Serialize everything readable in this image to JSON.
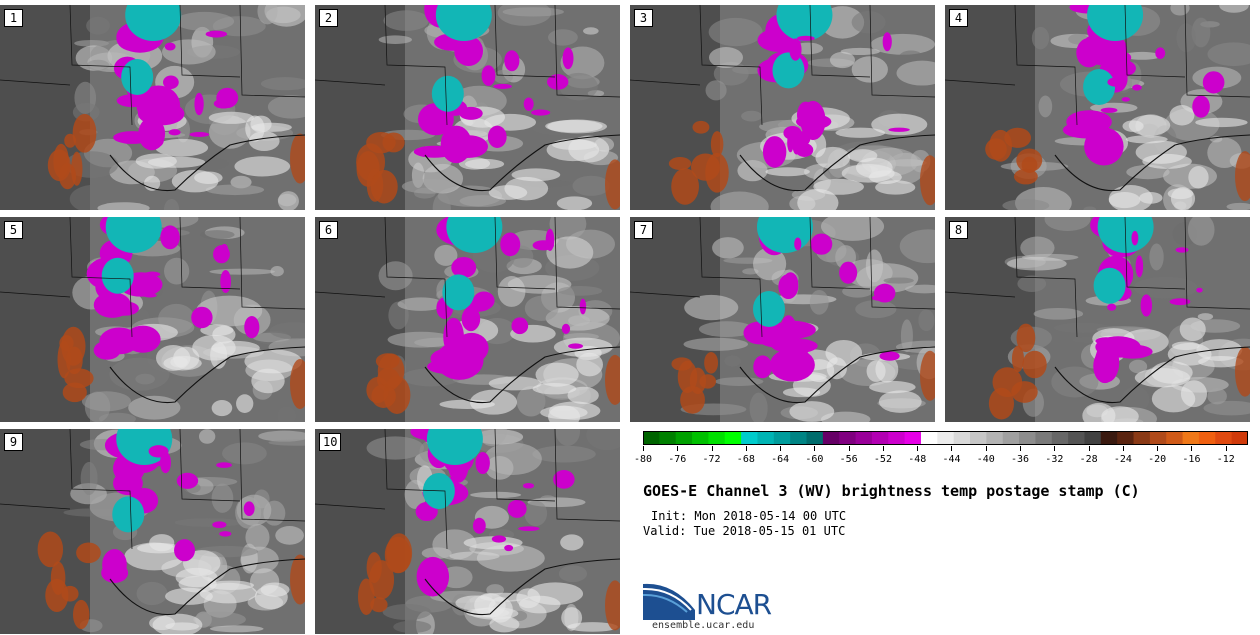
{
  "panels": [
    {
      "label": "1"
    },
    {
      "label": "2"
    },
    {
      "label": "3"
    },
    {
      "label": "4"
    },
    {
      "label": "5"
    },
    {
      "label": "6"
    },
    {
      "label": "7"
    },
    {
      "label": "8"
    },
    {
      "label": "9"
    },
    {
      "label": "10"
    }
  ],
  "colorbar": {
    "ticks": [
      "-80",
      "-76",
      "-72",
      "-68",
      "-64",
      "-60",
      "-56",
      "-52",
      "-48",
      "-44",
      "-40",
      "-36",
      "-32",
      "-28",
      "-24",
      "-20",
      "-16",
      "-12"
    ],
    "colors": [
      "#006400",
      "#008000",
      "#00a000",
      "#00c000",
      "#00e000",
      "#00ff00",
      "#00cccc",
      "#00b4b4",
      "#009c9c",
      "#008484",
      "#006c6c",
      "#660066",
      "#800080",
      "#990099",
      "#b300b3",
      "#cc00cc",
      "#e600e6",
      "#ffffff",
      "#ececec",
      "#d9d9d9",
      "#c6c6c6",
      "#b3b3b3",
      "#a0a0a0",
      "#8d8d8d",
      "#7a7a7a",
      "#676767",
      "#545454",
      "#414141",
      "#3a1a10",
      "#5a2410",
      "#8a3a16",
      "#b04a1a",
      "#d05a18",
      "#f07818",
      "#f06010",
      "#e04a10",
      "#d03a0a"
    ]
  },
  "title": "GOES-E Channel 3 (WV) brightness temp postage stamp (C)",
  "init": "Init: Mon 2018-05-14 00 UTC",
  "valid": "Valid: Tue 2018-05-15 01 UTC",
  "logo": {
    "text": "NCAR",
    "url": "ensemble.ucar.edu"
  },
  "colors": {
    "cold_cyan": "#12b6b6",
    "magenta": "#cc00cc",
    "warm_orange": "#b04a1a",
    "background_gray": "#6e6e6e"
  }
}
